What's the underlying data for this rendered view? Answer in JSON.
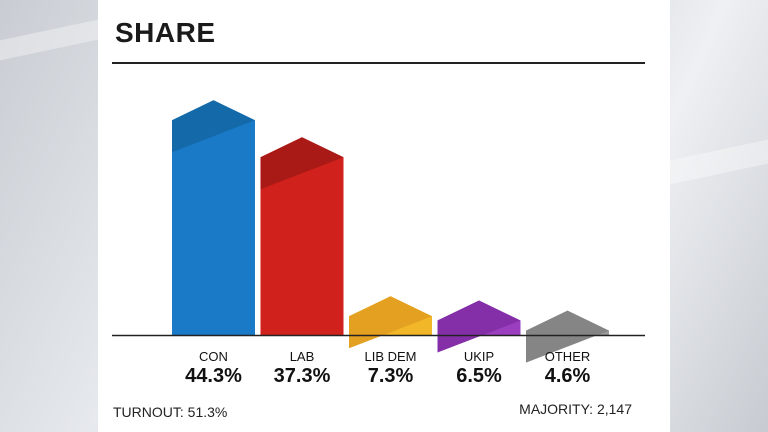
{
  "title": "SHARE",
  "footer": {
    "turnout_label": "TURNOUT:",
    "turnout_value": "51.3%",
    "majority_label": "MAJORITY:",
    "majority_value": "2,147"
  },
  "chart_data": {
    "type": "bar",
    "title": "SHARE",
    "categories": [
      "CON",
      "LAB",
      "LIB DEM",
      "UKIP",
      "OTHER"
    ],
    "values": [
      44.3,
      37.3,
      7.3,
      6.5,
      4.6
    ],
    "value_labels": [
      "44.3%",
      "37.3%",
      "7.3%",
      "6.5%",
      "4.6%"
    ],
    "colors": [
      "#1a7ac8",
      "#d0211c",
      "#f2b629",
      "#9b3ec0",
      "#9a9a9a"
    ],
    "shade_colors": [
      "#146aa9",
      "#a91a16",
      "#e4a020",
      "#842fa7",
      "#858585"
    ],
    "ylim": [
      0,
      50
    ],
    "grid": false,
    "legend": "none"
  }
}
